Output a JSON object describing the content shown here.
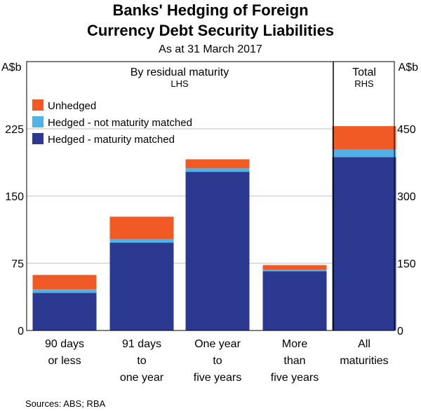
{
  "chart_data": {
    "type": "bar",
    "stacked": true,
    "title_lines": [
      "Banks' Hedging of Foreign",
      "Currency Debt Security Liabilities"
    ],
    "subtitle": "As at 31 March 2017",
    "left_unit": "A$b",
    "right_unit": "A$b",
    "left_ylim": [
      0,
      300
    ],
    "right_ylim": [
      0,
      600
    ],
    "left_ticks": [
      "0",
      "75",
      "150",
      "225"
    ],
    "left_tick_values": [
      0,
      75,
      150,
      225
    ],
    "right_ticks": [
      "0",
      "150",
      "300",
      "450"
    ],
    "right_tick_values": [
      0,
      150,
      300,
      450
    ],
    "panels": {
      "left": {
        "title": "By residual maturity",
        "subtitle": "LHS"
      },
      "right": {
        "title": "Total",
        "subtitle": "RHS"
      }
    },
    "categories": [
      {
        "lines": [
          "90 days",
          "or less"
        ]
      },
      {
        "lines": [
          "91 days",
          "to",
          "one year"
        ]
      },
      {
        "lines": [
          "One year",
          "to",
          "five years"
        ]
      },
      {
        "lines": [
          "More",
          "than",
          "five years"
        ]
      },
      {
        "lines": [
          "All",
          "maturities"
        ]
      }
    ],
    "category_axis": [
      "left",
      "left",
      "left",
      "left",
      "right"
    ],
    "series": [
      {
        "name": "Hedged - maturity matched",
        "color": "#2b3990",
        "values": [
          42,
          98,
          177,
          66,
          387
        ]
      },
      {
        "name": "Hedged - not maturity matched",
        "color": "#4fb3e8",
        "values": [
          4,
          4,
          4,
          2,
          17
        ]
      },
      {
        "name": "Unhedged",
        "color": "#f15a24",
        "values": [
          16,
          25,
          10,
          5,
          52
        ]
      }
    ],
    "legend_order": [
      "Unhedged",
      "Hedged - not maturity matched",
      "Hedged - maturity matched"
    ],
    "legend_position": "top-left",
    "grid": true,
    "source": "Sources: ABS; RBA"
  }
}
